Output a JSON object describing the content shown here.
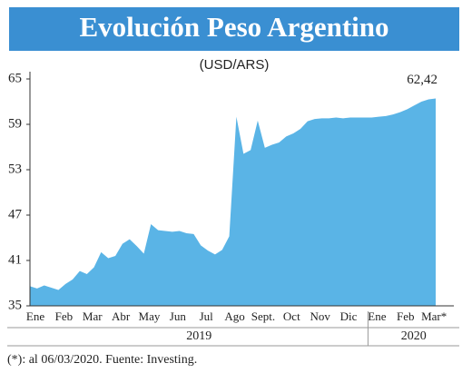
{
  "chart_data": {
    "type": "area",
    "title": "Evolución Peso Argentino",
    "subtitle": "(USD/ARS)",
    "footnote": "(*): al 06/03/2020. Fuente: Investing.",
    "categories": [
      "Ene",
      null,
      null,
      null,
      "Feb",
      null,
      null,
      null,
      "Mar",
      null,
      null,
      null,
      "Abr",
      null,
      null,
      null,
      "May",
      null,
      null,
      null,
      "Jun",
      null,
      null,
      null,
      "Jul",
      null,
      null,
      null,
      "Ago",
      null,
      null,
      null,
      "Sept.",
      null,
      null,
      null,
      "Oct",
      null,
      null,
      null,
      "Nov",
      null,
      null,
      null,
      "Dic",
      null,
      null,
      null,
      "Ene",
      null,
      null,
      null,
      "Feb",
      null,
      null,
      null,
      "Mar*",
      null
    ],
    "values": [
      37.6,
      37.3,
      37.7,
      37.4,
      37.1,
      37.9,
      38.5,
      39.6,
      39.2,
      40.1,
      42.1,
      41.3,
      41.6,
      43.2,
      43.8,
      42.9,
      41.9,
      45.8,
      45.0,
      44.9,
      44.8,
      44.9,
      44.6,
      44.5,
      43.0,
      42.3,
      41.8,
      42.4,
      44.2,
      60.0,
      55.1,
      55.6,
      59.5,
      55.9,
      56.3,
      56.6,
      57.4,
      57.8,
      58.4,
      59.4,
      59.7,
      59.8,
      59.8,
      59.9,
      59.8,
      59.9,
      59.9,
      59.9,
      59.9,
      60.0,
      60.1,
      60.3,
      60.6,
      61.0,
      61.5,
      62.0,
      62.3,
      62.42
    ],
    "value_labels": [
      null,
      null,
      null,
      null,
      null,
      null,
      null,
      null,
      null,
      null,
      null,
      null,
      null,
      null,
      null,
      null,
      null,
      null,
      null,
      null,
      null,
      null,
      null,
      null,
      null,
      null,
      null,
      null,
      null,
      null,
      null,
      null,
      null,
      null,
      null,
      null,
      null,
      null,
      null,
      null,
      null,
      null,
      null,
      null,
      null,
      null,
      null,
      null,
      null,
      null,
      null,
      null,
      null,
      null,
      null,
      null,
      null,
      "62,42"
    ],
    "years": [
      "2019",
      "2020"
    ],
    "color": "#5ab4e6",
    "ylim": [
      35,
      65
    ],
    "yticks": [
      35,
      41,
      47,
      53,
      59,
      65
    ],
    "grid": false
  }
}
